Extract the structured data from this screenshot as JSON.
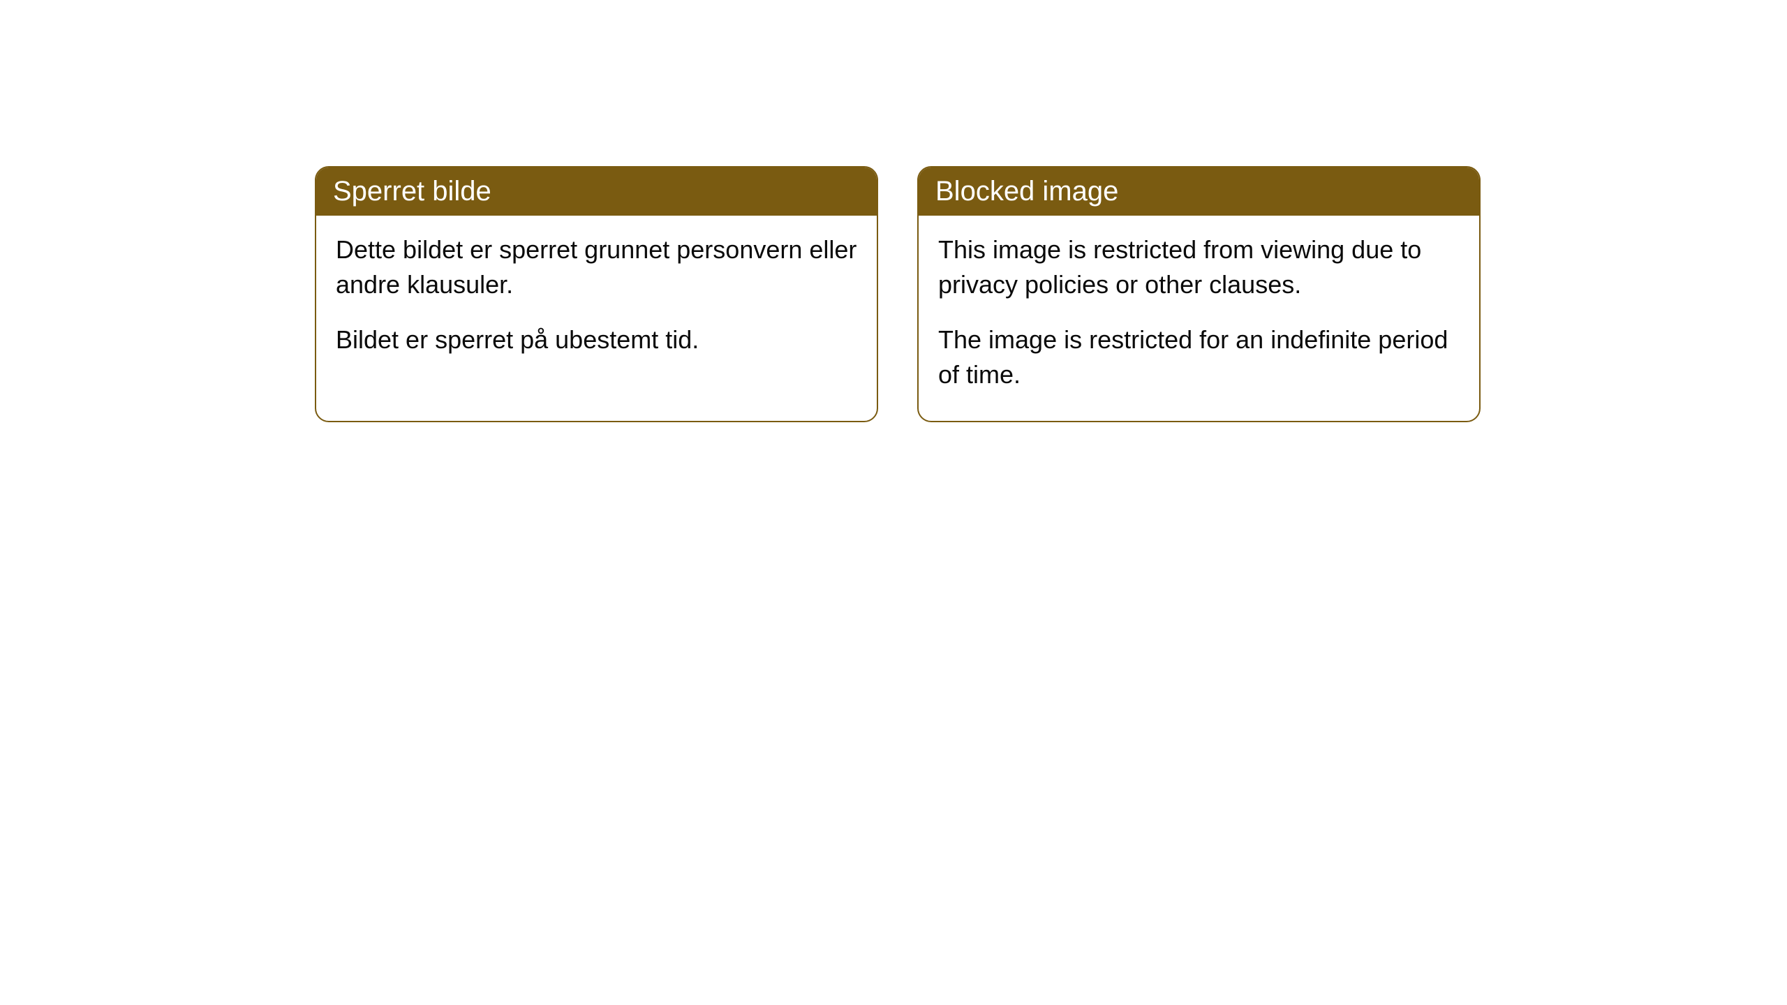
{
  "cards": [
    {
      "title": "Sperret bilde",
      "paragraph1": "Dette bildet er sperret grunnet personvern eller andre klausuler.",
      "paragraph2": "Bildet er sperret på ubestemt tid."
    },
    {
      "title": "Blocked image",
      "paragraph1": "This image is restricted from viewing due to privacy policies or other clauses.",
      "paragraph2": "The image is restricted for an indefinite period of time."
    }
  ],
  "styling": {
    "card_border_color": "#7a5b11",
    "card_header_bg": "#7a5b11",
    "card_header_text_color": "#ffffff",
    "card_body_bg": "#ffffff",
    "card_body_text_color": "#0a0a0a",
    "border_radius": 20,
    "header_fontsize": 40,
    "body_fontsize": 36
  }
}
